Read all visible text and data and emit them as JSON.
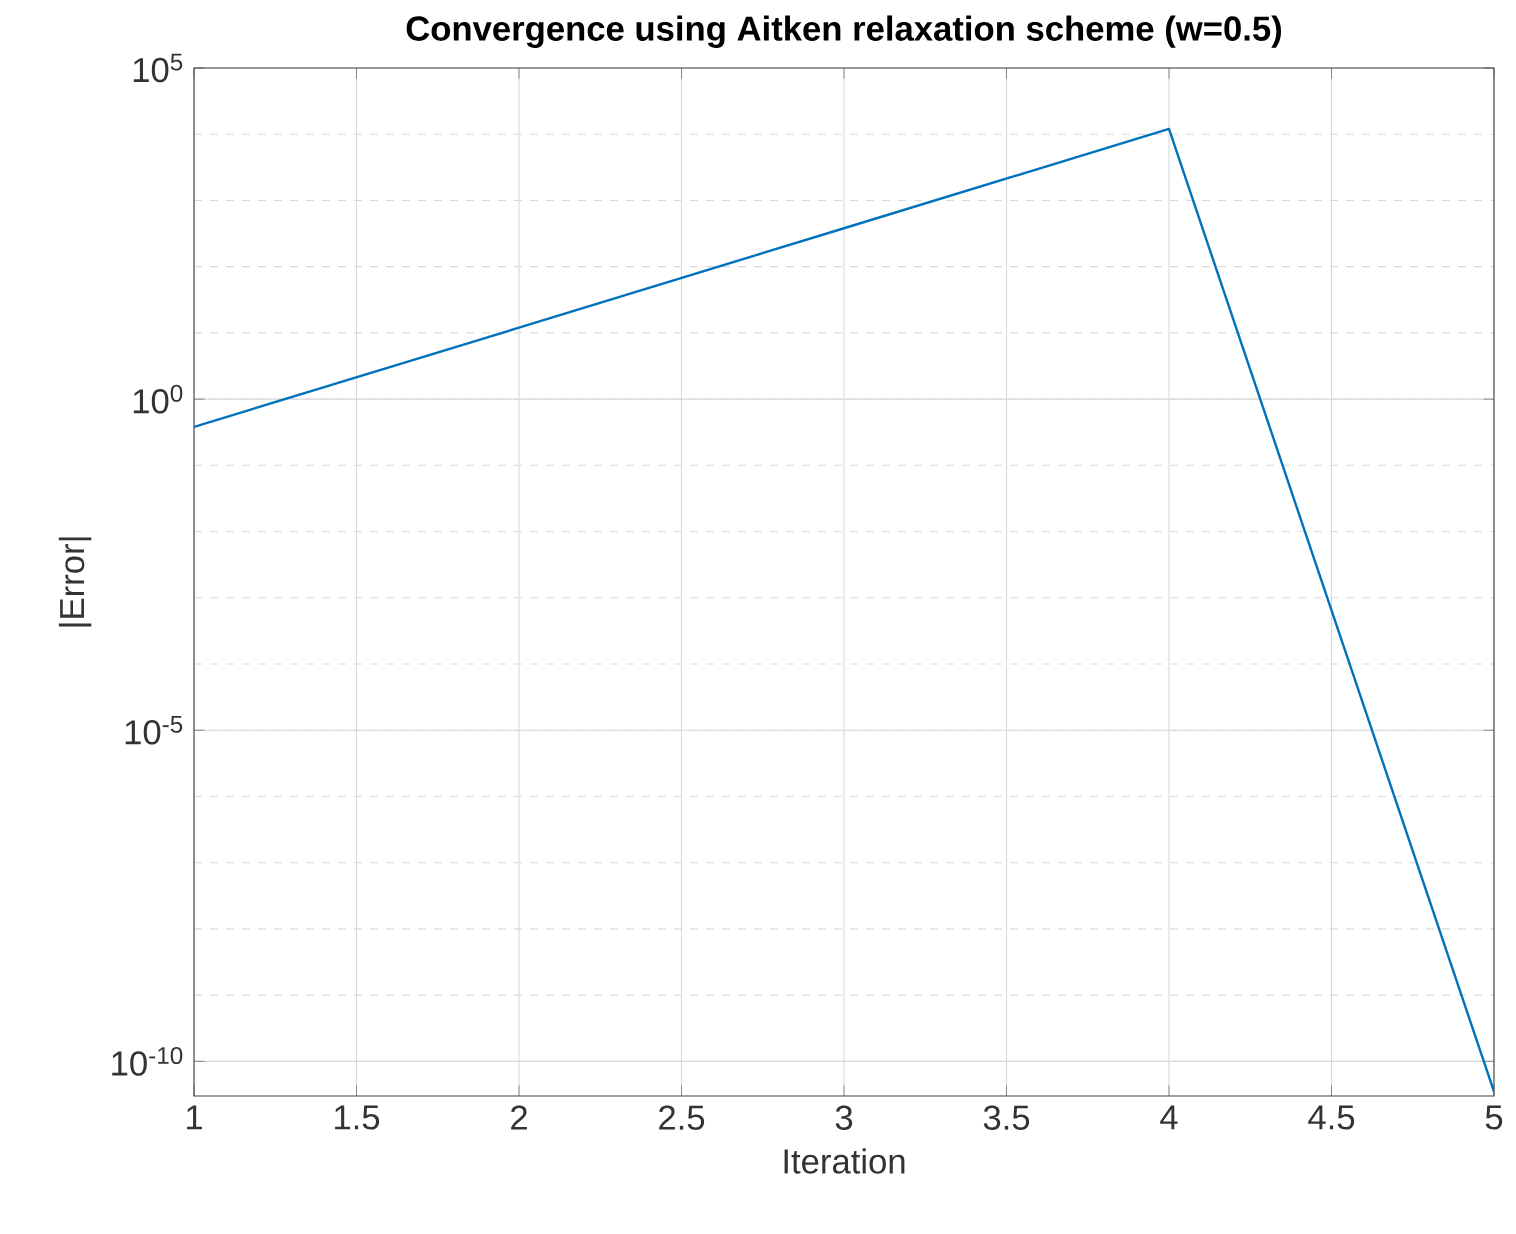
{
  "chart_data": {
    "type": "line",
    "title": "Convergence using Aitken relaxation scheme (w=0.5)",
    "xlabel": "Iteration",
    "ylabel": "|Error|",
    "x": [
      1,
      2,
      3,
      4,
      5
    ],
    "series": [
      {
        "color": "#0072bd",
        "values": [
          0.38,
          12,
          380,
          12000,
          3.5e-11
        ]
      }
    ],
    "log": "y",
    "grid": true,
    "marker": "none",
    "line_style": "solid",
    "xlim": [
      1,
      5
    ],
    "xticks": [
      1,
      1.5,
      2,
      2.5,
      3,
      3.5,
      4,
      4.5,
      5
    ],
    "ylim": [
      3e-11,
      100000
    ],
    "yticks": [
      {
        "value": 1e-10,
        "label": "10$^{-10}$"
      },
      {
        "value": 1e-05,
        "label": "10$^{-5}$"
      },
      {
        "value": 1,
        "label": "10$^{0}$"
      },
      {
        "value": 100000,
        "label": "10$^{5}$"
      }
    ]
  }
}
